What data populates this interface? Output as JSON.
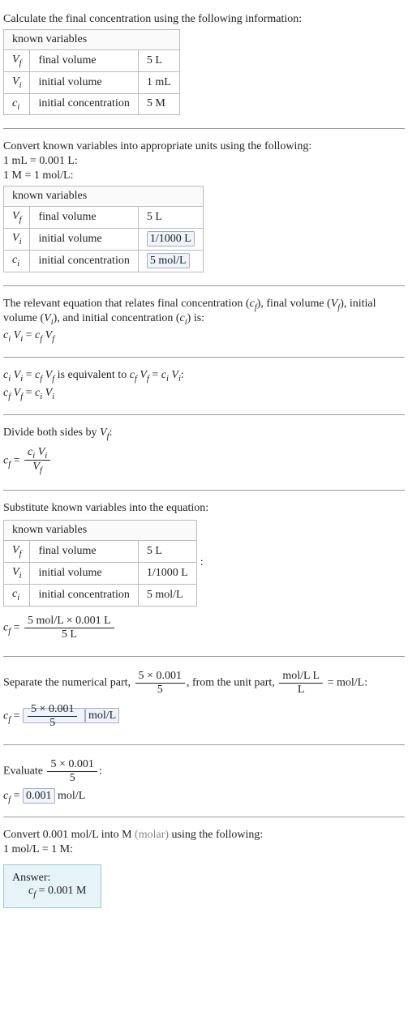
{
  "section1": {
    "intro": "Calculate the final concentration using the following information:",
    "table_header": "known variables",
    "rows": [
      {
        "sym_base": "V",
        "sym_sub": "f",
        "desc": "final volume",
        "val": "5 L"
      },
      {
        "sym_base": "V",
        "sym_sub": "i",
        "desc": "initial volume",
        "val": "1 mL"
      },
      {
        "sym_base": "c",
        "sym_sub": "i",
        "desc": "initial concentration",
        "val": "5 M"
      }
    ]
  },
  "section2": {
    "intro": "Convert known variables into appropriate units using the following:",
    "conv1": "1 mL = 0.001 L:",
    "conv2": "1 M = 1 mol/L:",
    "table_header": "known variables",
    "rows": [
      {
        "sym_base": "V",
        "sym_sub": "f",
        "desc": "final volume",
        "val": "5 L",
        "boxed": false
      },
      {
        "sym_base": "V",
        "sym_sub": "i",
        "desc": "initial volume",
        "val": "1/1000 L",
        "boxed": true
      },
      {
        "sym_base": "c",
        "sym_sub": "i",
        "desc": "initial concentration",
        "val": "5 mol/L",
        "boxed": true
      }
    ]
  },
  "section3": {
    "intro_a": "The relevant equation that relates final concentration (",
    "intro_cf_b": "c",
    "intro_cf_s": "f",
    "intro_b": "), final volume (",
    "intro_Vf_b": "V",
    "intro_Vf_s": "f",
    "intro_c": "), initial volume (",
    "intro_Vi_b": "V",
    "intro_Vi_s": "i",
    "intro_d": "), and initial concentration (",
    "intro_ci_b": "c",
    "intro_ci_s": "i",
    "intro_e": ") is:",
    "eq_lhs_c": "c",
    "eq_lhs_cs": "i",
    "eq_lhs_v": "V",
    "eq_lhs_vs": "i",
    "eq_eq": " = ",
    "eq_rhs_c": "c",
    "eq_rhs_cs": "f",
    "eq_rhs_v": "V",
    "eq_rhs_vs": "f"
  },
  "section4": {
    "intro_pre": "",
    "equiv": " is equivalent to ",
    "colon": ":",
    "eq_eq": " = "
  },
  "section5": {
    "intro_a": "Divide both sides by ",
    "V": "V",
    "Vs": "f",
    "intro_b": ":",
    "lhs_c": "c",
    "lhs_cs": "f",
    "eq": " = ",
    "num_c": "c",
    "num_cs": "i",
    "num_v": "V",
    "num_vs": "i",
    "den_v": "V",
    "den_vs": "f"
  },
  "section6": {
    "intro": "Substitute known variables into the equation:",
    "table_header": "known variables",
    "rows": [
      {
        "sym_base": "V",
        "sym_sub": "f",
        "desc": "final volume",
        "val": "5 L"
      },
      {
        "sym_base": "V",
        "sym_sub": "i",
        "desc": "initial volume",
        "val": "1/1000 L"
      },
      {
        "sym_base": "c",
        "sym_sub": "i",
        "desc": "initial concentration",
        "val": "5 mol/L"
      }
    ],
    "after_colon": ":",
    "lhs_c": "c",
    "lhs_cs": "f",
    "eq": " = ",
    "num": "5 mol/L × 0.001 L",
    "den": "5 L"
  },
  "section7": {
    "intro_a": "Separate the numerical part, ",
    "num1": "5 × 0.001",
    "den1": "5",
    "intro_b": ", from the unit part, ",
    "num2": "mol/L L",
    "den2": "L",
    "intro_c": " = mol/L:",
    "lhs_c": "c",
    "lhs_cs": "f",
    "eq": " = ",
    "ans_num": "5 × 0.001",
    "ans_den": "5",
    "unit": "mol/L"
  },
  "section8": {
    "intro_a": "Evaluate ",
    "num": "5 × 0.001",
    "den": "5",
    "intro_b": ":",
    "lhs_c": "c",
    "lhs_cs": "f",
    "eq": " = ",
    "val": "0.001",
    "unit": " mol/L"
  },
  "section9": {
    "intro_a": "Convert 0.001 mol/L into M ",
    "molar": "(molar)",
    "intro_b": " using the following:",
    "conv": "1 mol/L = 1 M:",
    "answer_label": "Answer:",
    "ans_c": "c",
    "ans_cs": "f",
    "ans_eq": " = 0.001 M"
  },
  "style": {
    "text_color": "#222",
    "border_color": "#bbb",
    "boxed_bg": "#eef4fa",
    "boxed_border": "#aac",
    "answer_bg": "#e6f3f9",
    "answer_border": "#9cc",
    "hr_color": "#999",
    "font_size_pt": 14
  }
}
